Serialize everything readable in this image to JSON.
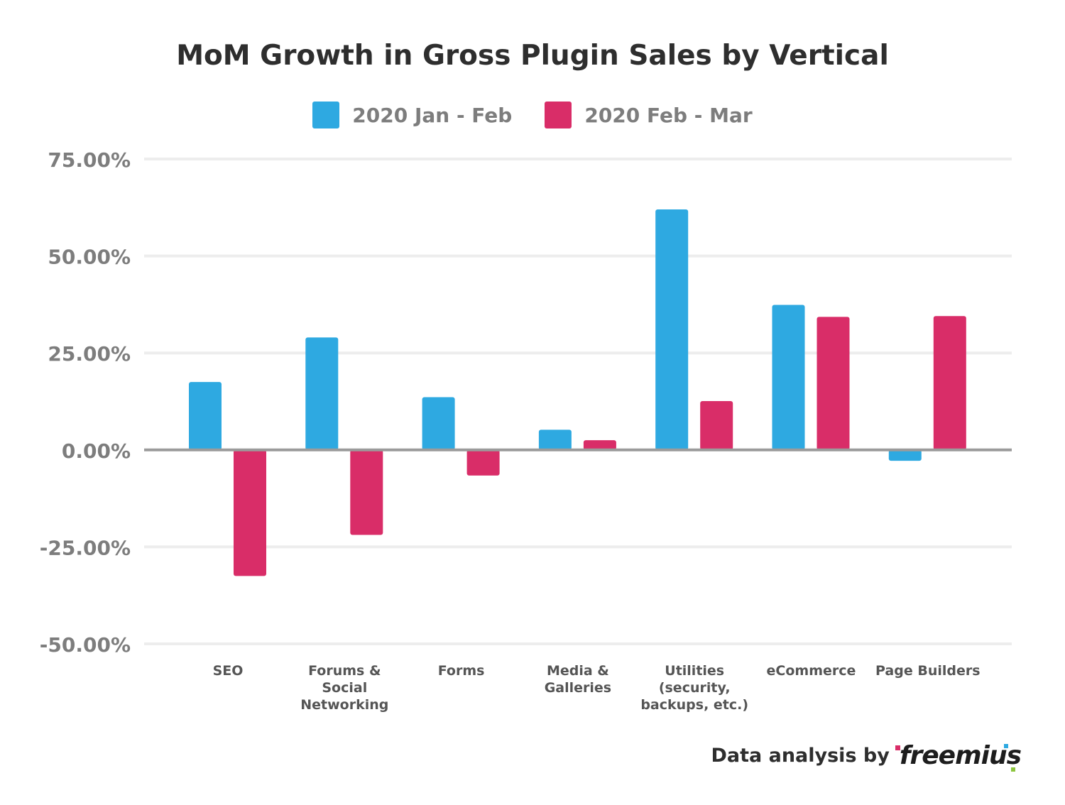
{
  "chart_data": {
    "type": "bar",
    "title": "MoM Growth in Gross Plugin Sales by Vertical",
    "xlabel": "",
    "ylabel": "",
    "categories": [
      [
        "SEO"
      ],
      [
        "Forums &",
        "Social",
        "Networking"
      ],
      [
        "Forms"
      ],
      [
        "Media &",
        "Galleries"
      ],
      [
        "Utilities",
        "(security,",
        "backups, etc.)"
      ],
      [
        "eCommerce"
      ],
      [
        "Page Builders"
      ]
    ],
    "series": [
      {
        "name": "2020 Jan - Feb",
        "color": "#2ea9e1",
        "values": [
          17.5,
          29.0,
          13.6,
          5.2,
          62.0,
          37.4,
          -2.8
        ]
      },
      {
        "name": "2020 Feb - Mar",
        "color": "#d92d68",
        "values": [
          -32.5,
          -21.9,
          -6.6,
          2.5,
          12.6,
          34.3,
          34.5
        ]
      }
    ],
    "ylim": [
      -50,
      75
    ],
    "yticks": [
      75,
      50,
      25,
      0,
      -25,
      -50
    ],
    "ytick_labels": [
      "75.00%",
      "50.00%",
      "25.00%",
      "0.00%",
      "-25.00%",
      "-50.00%"
    ],
    "grid": true,
    "legend": "top-center"
  },
  "footer": {
    "text": "Data analysis by",
    "brand": "freemius"
  },
  "colors": {
    "grid": "#ededed",
    "zero_line": "#9b9b9b",
    "tick_text": "#7d7d7d",
    "category_text": "#555555"
  }
}
